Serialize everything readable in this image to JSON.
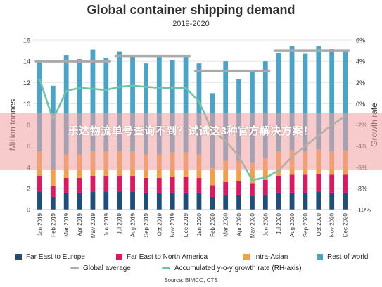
{
  "chart_data": {
    "type": "bar",
    "title": "Global container shipping demand",
    "subtitle": "2019-2020",
    "ylabel": "Million tonnes",
    "y2label": "Growth rate",
    "ylim": [
      0,
      16
    ],
    "y2lim": [
      -10,
      6
    ],
    "yticks": [
      0,
      2,
      4,
      6,
      8,
      10,
      12,
      14,
      16
    ],
    "y2ticks": [
      "-10%",
      "-8%",
      "-6%",
      "-4%",
      "-2%",
      "0%",
      "2%",
      "4%",
      "6%"
    ],
    "stacked": true,
    "categories": [
      "Jan 2019",
      "Feb 2019",
      "Mar 2019",
      "Apr 2019",
      "May 2019",
      "Jun 2019",
      "Jul 2019",
      "Aug 2019",
      "Sep 2019",
      "Oct 2019",
      "Nov 2019",
      "Dec 2019",
      "Jan 2020",
      "Feb 2020",
      "Mar 2020",
      "Apr 2020",
      "May 2020",
      "Jun 2020",
      "Jul 2020",
      "Aug 2020",
      "Sep 2020",
      "Oct 2020",
      "Nov 2020",
      "Dec 2020"
    ],
    "series": [
      {
        "name": "Far East to Europe",
        "color": "#1f4e79",
        "values": [
          1.7,
          1.2,
          1.6,
          1.6,
          1.7,
          1.7,
          1.7,
          1.7,
          1.6,
          1.6,
          1.6,
          1.6,
          1.6,
          1.2,
          1.4,
          1.4,
          1.3,
          1.4,
          1.6,
          1.6,
          1.6,
          1.7,
          1.6,
          1.6
        ]
      },
      {
        "name": "Far East to North America",
        "color": "#d81b60",
        "values": [
          1.5,
          1.0,
          1.4,
          1.4,
          1.5,
          1.5,
          1.5,
          1.5,
          1.4,
          1.4,
          1.5,
          1.5,
          1.4,
          1.1,
          1.2,
          1.3,
          1.2,
          1.4,
          1.6,
          1.7,
          1.7,
          1.7,
          1.7,
          1.7
        ]
      },
      {
        "name": "Intra-Asian",
        "color": "#f0a04b",
        "values": [
          2.3,
          1.6,
          2.2,
          2.2,
          2.3,
          2.3,
          2.3,
          2.3,
          2.2,
          2.2,
          2.3,
          2.3,
          2.2,
          1.6,
          2.0,
          1.9,
          1.9,
          2.1,
          2.3,
          2.3,
          2.2,
          2.3,
          2.2,
          2.3
        ]
      },
      {
        "name": "Rest of world",
        "color": "#4ba3c7",
        "values": [
          8.4,
          7.9,
          9.4,
          9.0,
          9.6,
          8.8,
          9.4,
          9.0,
          8.6,
          9.3,
          8.7,
          9.2,
          8.6,
          7.1,
          9.4,
          7.7,
          8.6,
          9.1,
          9.3,
          9.8,
          9.2,
          9.7,
          9.7,
          9.5
        ]
      }
    ],
    "global_average": {
      "name": "Global average",
      "color": "#aaaaaa",
      "segments": [
        {
          "from": "Jan 2019",
          "to": "Jun 2019",
          "value": 14.0
        },
        {
          "from": "Jul 2019",
          "to": "Dec 2019",
          "value": 14.5
        },
        {
          "from": "Jan 2020",
          "to": "Jun 2020",
          "value": 13.1
        },
        {
          "from": "Jul 2020",
          "to": "Dec 2020",
          "value": 15.0
        }
      ]
    },
    "growth_rate": {
      "name": "Accumulated y-o-y growth rate (RH-axis)",
      "color": "#6fc3a8",
      "values": [
        2.3,
        -1.5,
        1.2,
        1.5,
        1.4,
        1.3,
        1.6,
        1.7,
        1.6,
        1.5,
        1.5,
        1.5,
        0.2,
        -2.6,
        -3.5,
        -5.0,
        -7.2,
        -7.0,
        -6.3,
        -5.0,
        -4.0,
        -3.0,
        -2.0,
        -1.2
      ]
    },
    "legend": "bottom",
    "grid": true
  },
  "overlay": {
    "text": "乐达物流单号查询不到？试试这3种官方解决方案！"
  },
  "source": "Source: BIMCO, CTS"
}
